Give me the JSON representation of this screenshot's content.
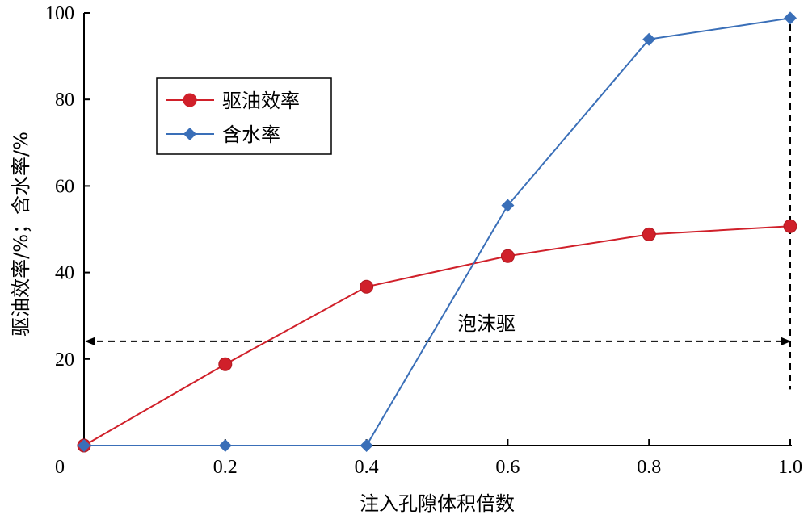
{
  "chart_data": {
    "type": "line",
    "title": "",
    "xlabel": "注入孔隙体积倍数",
    "ylabel": "驱油效率/%；含水率/%",
    "xlim": [
      0,
      1.0
    ],
    "ylim": [
      0,
      100
    ],
    "x_ticks": [
      0,
      0.2,
      0.4,
      0.6,
      0.8,
      1.0
    ],
    "x_tick_labels": [
      "0",
      "0.2",
      "0.4",
      "0.6",
      "0.8",
      "1.0"
    ],
    "y_ticks": [
      20,
      40,
      60,
      80,
      100
    ],
    "y_tick_labels": [
      "20",
      "40",
      "60",
      "80",
      "100"
    ],
    "grid": false,
    "legend_position": "top-left",
    "series": [
      {
        "name": "驱油效率",
        "color": "#d0202a",
        "marker": "circle",
        "x": [
          0,
          0.2,
          0.4,
          0.6,
          0.8,
          1.0
        ],
        "y": [
          0,
          18.8,
          36.7,
          43.8,
          48.8,
          50.7
        ]
      },
      {
        "name": "含水率",
        "color": "#3a6fb8",
        "marker": "diamond",
        "x": [
          0,
          0.2,
          0.4,
          0.6,
          0.8,
          1.0
        ],
        "y": [
          0,
          0,
          0,
          55.5,
          93.9,
          98.8
        ]
      }
    ],
    "annotations": [
      {
        "text": "泡沫驱",
        "type": "double-arrow-range",
        "x_from": 0,
        "x_to": 1.0,
        "y": 24.1
      },
      {
        "type": "vertical-dashed-line",
        "x": 1.0,
        "y_from": 13,
        "y_to": 100
      }
    ]
  }
}
